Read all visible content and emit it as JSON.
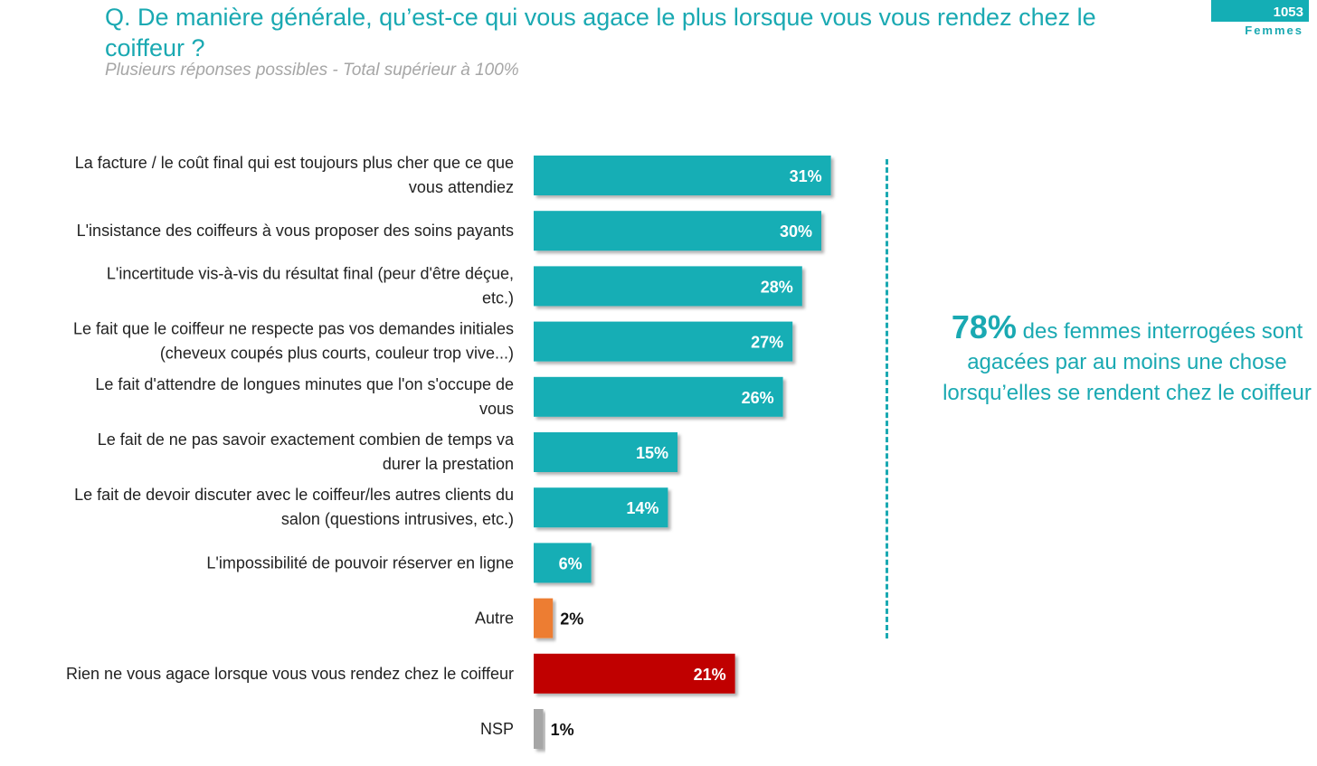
{
  "header": {
    "title": "Q. De manière générale, qu’est-ce qui vous agace le plus lorsque vous vous rendez chez le coiffeur ?",
    "subtitle": "Plusieurs réponses possibles - Total supérieur à 100%",
    "sample_count": "1053",
    "sample_label": "Femmes"
  },
  "callout": {
    "percent": "78%",
    "text": "des femmes interrogées sont agacées par au moins une chose lorsqu’elles se rendent chez le coiffeur"
  },
  "colors": {
    "teal": "#14aeb5",
    "orange": "#ed7d31",
    "red": "#c00000",
    "grey": "#a6a6a6"
  },
  "chart_data": {
    "type": "bar",
    "orientation": "horizontal",
    "categories": [
      [
        "La facture / le coût final qui est toujours plus cher que ce que",
        "vous attendiez"
      ],
      [
        "L'insistance des coiffeurs à vous proposer des soins payants"
      ],
      [
        "L'incertitude vis-à-vis du résultat final (peur d'être déçue,",
        "etc.)"
      ],
      [
        "Le fait que le coiffeur ne respecte pas vos demandes initiales",
        "(cheveux coupés plus courts, couleur trop vive...)"
      ],
      [
        "Le fait d'attendre de longues minutes que l'on s'occupe de",
        "vous"
      ],
      [
        "Le fait de ne pas savoir exactement combien de temps va",
        "durer la prestation"
      ],
      [
        "Le fait de devoir discuter avec le coiffeur/les autres clients du",
        "salon (questions intrusives, etc.)"
      ],
      [
        "L'impossibilité de pouvoir réserver en ligne"
      ],
      [
        "Autre"
      ],
      [
        "Rien ne vous agace lorsque vous vous rendez chez le coiffeur"
      ],
      [
        "NSP"
      ]
    ],
    "values": [
      31,
      30,
      28,
      27,
      26,
      15,
      14,
      6,
      2,
      21,
      1
    ],
    "value_labels": [
      "31%",
      "30%",
      "28%",
      "27%",
      "26%",
      "15%",
      "14%",
      "6%",
      "2%",
      "21%",
      "1%"
    ],
    "bar_colors": [
      "teal",
      "teal",
      "teal",
      "teal",
      "teal",
      "teal",
      "teal",
      "teal",
      "orange",
      "red",
      "grey"
    ],
    "xlim": [
      0,
      100
    ],
    "grid": false,
    "legend": "none"
  }
}
